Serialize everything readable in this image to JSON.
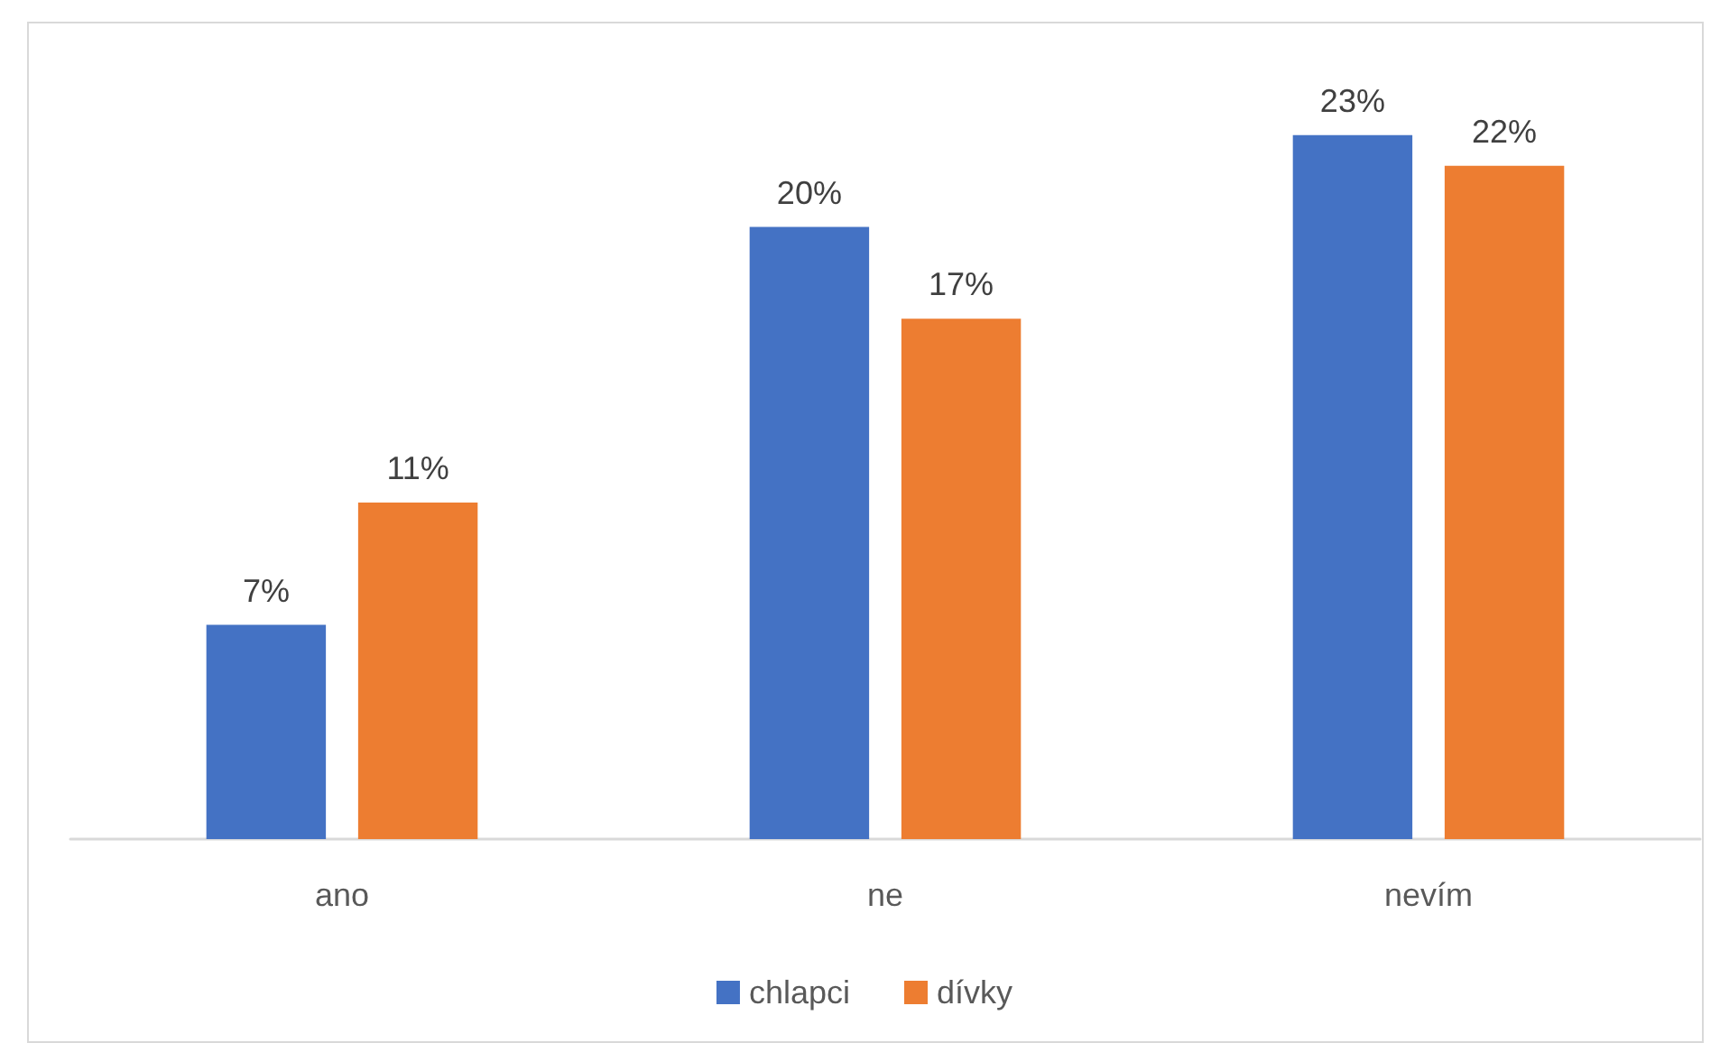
{
  "chart_data": {
    "type": "bar",
    "categories": [
      "ano",
      "ne",
      "nevím"
    ],
    "series": [
      {
        "name": "chlapci",
        "color": "#4472c4",
        "values": [
          7,
          20,
          23
        ],
        "value_labels": [
          "7%",
          "20%",
          "23%"
        ]
      },
      {
        "name": "dívky",
        "color": "#ed7d31",
        "values": [
          11,
          17,
          22
        ],
        "value_labels": [
          "11%",
          "17%",
          "22%"
        ]
      }
    ],
    "legend": "bottom"
  }
}
